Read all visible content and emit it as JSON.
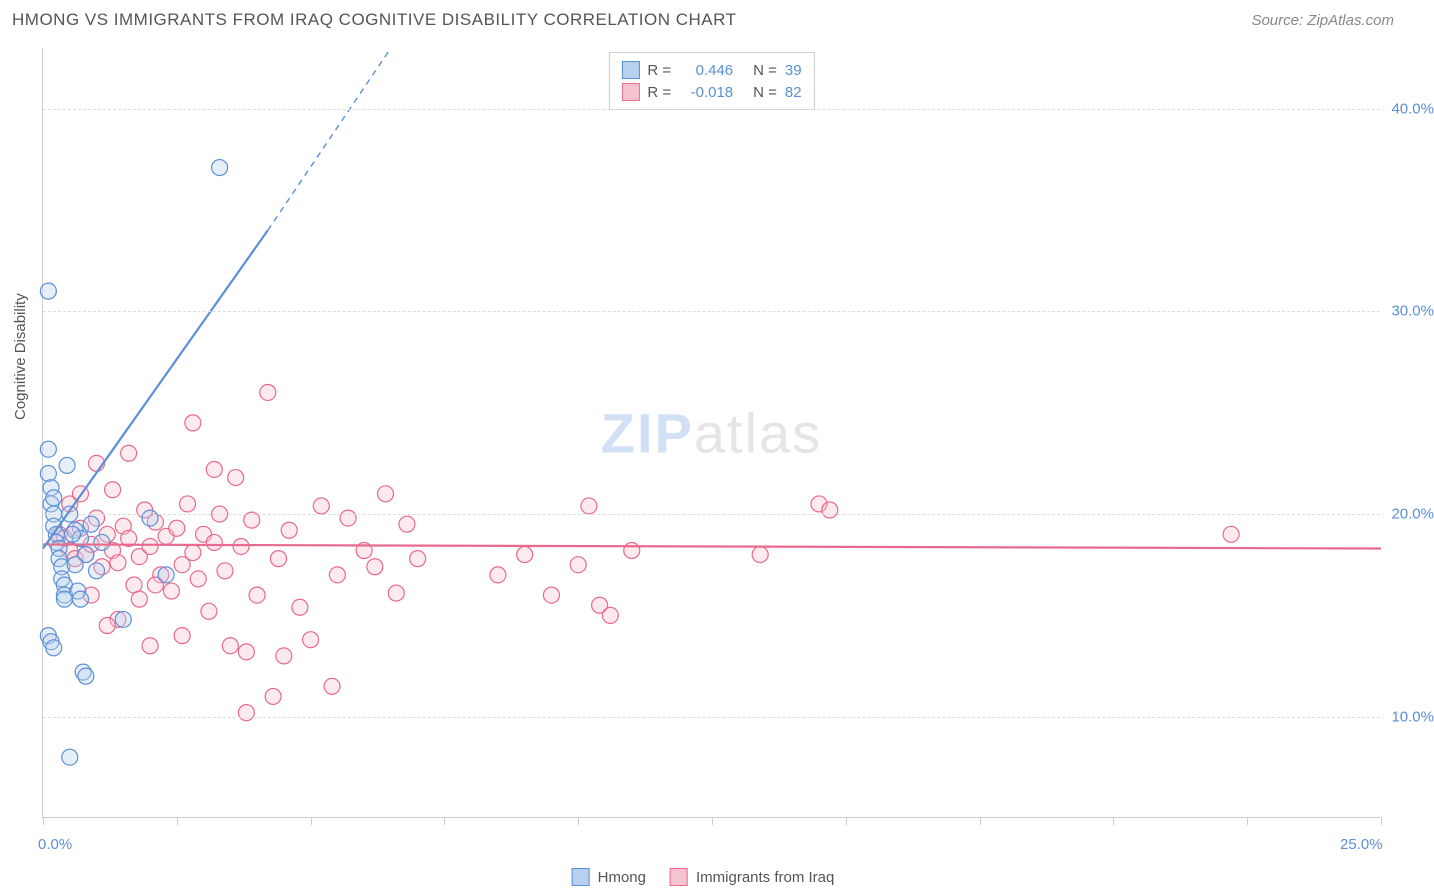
{
  "header": {
    "title": "HMONG VS IMMIGRANTS FROM IRAQ COGNITIVE DISABILITY CORRELATION CHART",
    "source": "Source: ZipAtlas.com"
  },
  "chart": {
    "type": "scatter",
    "ylabel": "Cognitive Disability",
    "xlim": [
      0,
      25
    ],
    "ylim": [
      5,
      43
    ],
    "xtick_positions": [
      0,
      2.5,
      5,
      7.5,
      10,
      12.5,
      15,
      17.5,
      20,
      22.5,
      25
    ],
    "xtick_labels": {
      "0": "0.0%",
      "25": "25.0%"
    },
    "ytick_positions": [
      10,
      20,
      30,
      40
    ],
    "ytick_labels": [
      "10.0%",
      "20.0%",
      "30.0%",
      "40.0%"
    ],
    "grid_color": "#dddddd",
    "axis_color": "#cccccc",
    "background_color": "#ffffff",
    "marker_radius": 8,
    "marker_stroke_width": 1.2,
    "fill_opacity": 0.35,
    "watermark": {
      "part1": "ZIP",
      "part2": "atlas"
    }
  },
  "legend_top": {
    "rows": [
      {
        "swatch_fill": "#b7d0ef",
        "swatch_stroke": "#5b8fd6",
        "r_label": "R =",
        "r_value": "0.446",
        "n_label": "N =",
        "n_value": "39",
        "value_color": "#5b8fd6"
      },
      {
        "swatch_fill": "#f6c4d0",
        "swatch_stroke": "#e86a8e",
        "r_label": "R =",
        "r_value": "-0.018",
        "n_label": "N =",
        "n_value": "82",
        "value_color": "#5b8fd6"
      }
    ]
  },
  "legend_bottom": {
    "items": [
      {
        "swatch_fill": "#b7d0ef",
        "swatch_stroke": "#5b8fd6",
        "label": "Hmong"
      },
      {
        "swatch_fill": "#f6c4d0",
        "swatch_stroke": "#e86a8e",
        "label": "Immigrants from Iraq"
      }
    ]
  },
  "series": {
    "hmong": {
      "color_fill": "#b7d0ef",
      "color_stroke": "#5b8fd6",
      "trend_line": {
        "x1": 0,
        "y1": 18.3,
        "x2_solid": 4.2,
        "y2_solid": 34,
        "x2_dash": 6.5,
        "y2_dash": 43,
        "stroke_width": 2.2
      },
      "points": [
        [
          0.1,
          31.0
        ],
        [
          0.1,
          22.0
        ],
        [
          0.1,
          23.2
        ],
        [
          0.15,
          21.3
        ],
        [
          0.15,
          20.5
        ],
        [
          0.2,
          20.8
        ],
        [
          0.2,
          20.0
        ],
        [
          0.2,
          19.4
        ],
        [
          0.25,
          19.0
        ],
        [
          0.25,
          18.6
        ],
        [
          0.3,
          18.3
        ],
        [
          0.3,
          17.8
        ],
        [
          0.35,
          17.4
        ],
        [
          0.35,
          16.8
        ],
        [
          0.4,
          16.5
        ],
        [
          0.4,
          16.0
        ],
        [
          0.4,
          15.8
        ],
        [
          0.1,
          14.0
        ],
        [
          0.15,
          13.7
        ],
        [
          0.2,
          13.4
        ],
        [
          0.6,
          19.2
        ],
        [
          0.7,
          18.8
        ],
        [
          0.8,
          18.0
        ],
        [
          0.9,
          19.5
        ],
        [
          1.0,
          17.2
        ],
        [
          1.1,
          18.6
        ],
        [
          0.45,
          22.4
        ],
        [
          0.5,
          20.0
        ],
        [
          0.55,
          19.0
        ],
        [
          0.6,
          17.5
        ],
        [
          0.65,
          16.2
        ],
        [
          0.7,
          15.8
        ],
        [
          0.75,
          12.2
        ],
        [
          0.8,
          12.0
        ],
        [
          1.5,
          14.8
        ],
        [
          3.3,
          37.1
        ],
        [
          0.5,
          8.0
        ],
        [
          2.0,
          19.8
        ],
        [
          2.3,
          17.0
        ]
      ]
    },
    "iraq": {
      "color_fill": "#f6c4d0",
      "color_stroke": "#e86a8e",
      "trend_line": {
        "x1": 0,
        "y1": 18.5,
        "x2": 25,
        "y2": 18.3,
        "stroke_width": 2.2
      },
      "points": [
        [
          0.3,
          19.0
        ],
        [
          0.4,
          18.8
        ],
        [
          0.5,
          18.2
        ],
        [
          0.6,
          17.8
        ],
        [
          0.7,
          19.3
        ],
        [
          0.8,
          18.0
        ],
        [
          0.9,
          18.5
        ],
        [
          1.0,
          19.8
        ],
        [
          1.1,
          17.4
        ],
        [
          1.2,
          19.0
        ],
        [
          1.3,
          18.2
        ],
        [
          1.4,
          17.6
        ],
        [
          1.5,
          19.4
        ],
        [
          1.6,
          18.8
        ],
        [
          1.7,
          16.5
        ],
        [
          1.8,
          17.9
        ],
        [
          1.9,
          20.2
        ],
        [
          2.0,
          18.4
        ],
        [
          2.1,
          19.6
        ],
        [
          2.2,
          17.0
        ],
        [
          2.3,
          18.9
        ],
        [
          2.4,
          16.2
        ],
        [
          2.5,
          19.3
        ],
        [
          2.6,
          17.5
        ],
        [
          2.7,
          20.5
        ],
        [
          2.8,
          18.1
        ],
        [
          2.9,
          16.8
        ],
        [
          3.0,
          19.0
        ],
        [
          3.1,
          15.2
        ],
        [
          3.2,
          18.6
        ],
        [
          3.3,
          20.0
        ],
        [
          3.4,
          17.2
        ],
        [
          3.5,
          13.5
        ],
        [
          3.6,
          21.8
        ],
        [
          3.7,
          18.4
        ],
        [
          3.8,
          13.2
        ],
        [
          3.9,
          19.7
        ],
        [
          4.0,
          16.0
        ],
        [
          4.2,
          26.0
        ],
        [
          4.4,
          17.8
        ],
        [
          4.5,
          13.0
        ],
        [
          4.6,
          19.2
        ],
        [
          4.8,
          15.4
        ],
        [
          5.0,
          13.8
        ],
        [
          5.2,
          20.4
        ],
        [
          5.4,
          11.5
        ],
        [
          5.5,
          17.0
        ],
        [
          5.7,
          19.8
        ],
        [
          6.0,
          18.2
        ],
        [
          6.2,
          17.4
        ],
        [
          6.4,
          21.0
        ],
        [
          6.6,
          16.1
        ],
        [
          6.8,
          19.5
        ],
        [
          7.0,
          17.8
        ],
        [
          2.8,
          24.5
        ],
        [
          3.2,
          22.2
        ],
        [
          1.6,
          23.0
        ],
        [
          4.3,
          11.0
        ],
        [
          8.5,
          17.0
        ],
        [
          9.0,
          18.0
        ],
        [
          9.5,
          16.0
        ],
        [
          10.0,
          17.5
        ],
        [
          10.2,
          20.4
        ],
        [
          10.4,
          15.5
        ],
        [
          10.6,
          15.0
        ],
        [
          11.0,
          18.2
        ],
        [
          13.4,
          18.0
        ],
        [
          14.5,
          20.5
        ],
        [
          14.7,
          20.2
        ],
        [
          3.8,
          10.2
        ],
        [
          1.4,
          14.8
        ],
        [
          2.0,
          13.5
        ],
        [
          2.6,
          14.0
        ],
        [
          1.8,
          15.8
        ],
        [
          0.9,
          16.0
        ],
        [
          1.2,
          14.5
        ],
        [
          2.1,
          16.5
        ],
        [
          0.5,
          20.5
        ],
        [
          0.7,
          21.0
        ],
        [
          22.2,
          19.0
        ],
        [
          1.0,
          22.5
        ],
        [
          1.3,
          21.2
        ]
      ]
    }
  }
}
